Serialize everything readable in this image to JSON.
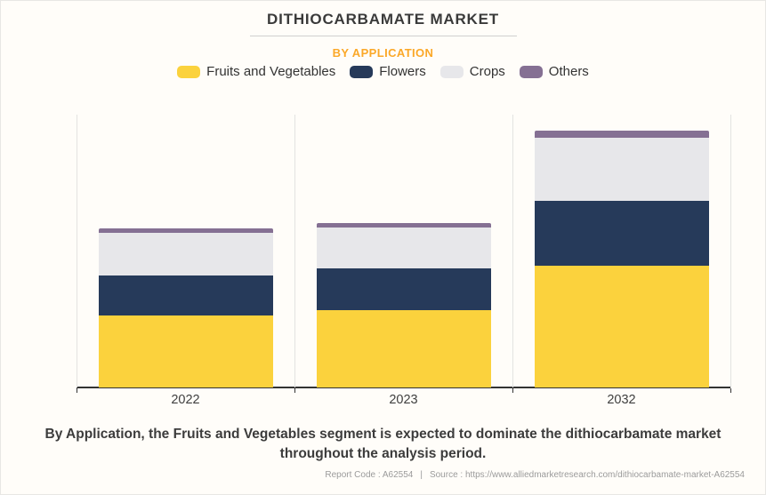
{
  "header": {
    "title": "DITHIOCARBAMATE MARKET",
    "subtitle": "BY APPLICATION"
  },
  "legend": {
    "items": [
      {
        "label": "Fruits and Vegetables",
        "color": "#FBD23D"
      },
      {
        "label": "Flowers",
        "color": "#263A5A"
      },
      {
        "label": "Crops",
        "color": "#E7E7EA"
      },
      {
        "label": "Others",
        "color": "#857093"
      }
    ]
  },
  "chart_data": {
    "type": "bar",
    "subtype": "stacked",
    "title": "DITHIOCARBAMATE MARKET",
    "subtitle": "BY APPLICATION",
    "categories": [
      "2022",
      "2023",
      "2032"
    ],
    "series": [
      {
        "name": "Fruits and Vegetables",
        "color": "#FBD23D",
        "values": [
          81,
          87,
          137
        ]
      },
      {
        "name": "Flowers",
        "color": "#263A5A",
        "values": [
          45,
          47,
          73
        ]
      },
      {
        "name": "Crops",
        "color": "#E7E7EA",
        "values": [
          48,
          46,
          71
        ]
      },
      {
        "name": "Others",
        "color": "#857093",
        "values": [
          5,
          5,
          8
        ]
      }
    ],
    "xlabel": "",
    "ylabel": "",
    "ylim": [
      0,
      307
    ],
    "y_axis_labels_visible": false,
    "grid": "vertical-category-separators",
    "legend_position": "top-center",
    "note": "values are relative heights; no numeric y-axis shown in source"
  },
  "description": {
    "text": "By Application, the Fruits and Vegetables segment is expected to dominate the dithiocarbamate market throughout the analysis period."
  },
  "footer": {
    "report_code": "Report Code : A62554",
    "separator": "|",
    "source": "Source : https://www.alliedmarketresearch.com/dithiocarbamate-market-A62554"
  },
  "colors": {
    "background": "#FFFDF9",
    "title_text": "#3A3A3A",
    "subtitle_accent": "#FBA828",
    "axis": "#333333",
    "gridline": "#E3E3E1",
    "footer_text": "#9B9B9B"
  }
}
